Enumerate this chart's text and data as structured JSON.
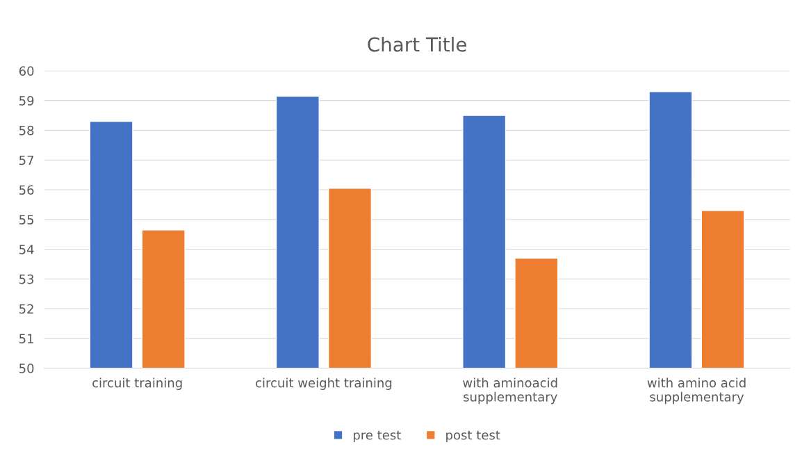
{
  "chart_data": {
    "type": "bar",
    "title": "Chart Title",
    "categories": [
      "circuit training",
      "circuit weight training",
      "with aminoacid supplementary",
      "with amino acid supplementary"
    ],
    "series": [
      {
        "name": "pre test",
        "color": "#4472c4",
        "values": [
          58.3,
          59.15,
          58.5,
          59.3
        ]
      },
      {
        "name": "post test",
        "color": "#ed7d31",
        "values": [
          54.65,
          56.05,
          53.7,
          55.3
        ]
      }
    ],
    "ylim": [
      50,
      60
    ],
    "yticks": [
      50,
      51,
      52,
      53,
      54,
      55,
      56,
      57,
      58,
      59,
      60
    ],
    "grid": "y",
    "legend": "bottom"
  }
}
